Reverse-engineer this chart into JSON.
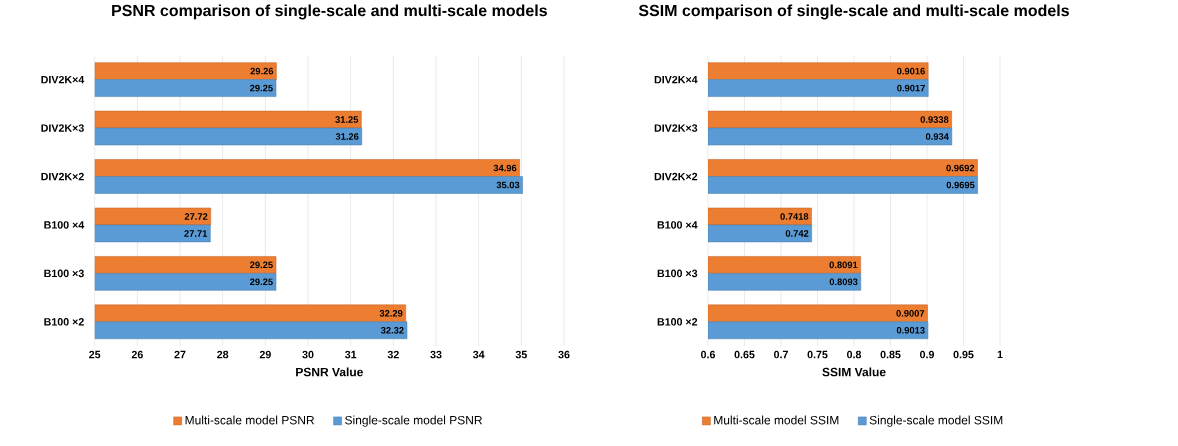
{
  "chart_data": [
    {
      "type": "bar",
      "orientation": "horizontal",
      "title": "PSNR comparison of single-scale and multi-scale models",
      "xlabel": "PSNR  Value",
      "categories": [
        "DIV2K×4",
        "DIV2K×3",
        "DIV2K×2",
        "B100 ×4",
        "B100 ×3",
        "B100 ×2"
      ],
      "series": [
        {
          "name": "Multi-scale model PSNR",
          "color": "#ed7d31",
          "values": [
            29.26,
            31.25,
            34.96,
            27.72,
            29.25,
            32.29
          ]
        },
        {
          "name": "Single-scale model PSNR",
          "color": "#5b9bd5",
          "values": [
            29.25,
            31.26,
            35.03,
            27.71,
            29.25,
            32.32
          ]
        }
      ],
      "xlim": [
        25,
        36
      ],
      "xticks": [
        25,
        26,
        27,
        28,
        29,
        30,
        31,
        32,
        33,
        34,
        35,
        36
      ],
      "grid": "x",
      "legend": "bottom",
      "data_labels": true
    },
    {
      "type": "bar",
      "orientation": "horizontal",
      "title": "SSIM comparison of single-scale and multi-scale models",
      "xlabel": "SSIM Value",
      "categories": [
        "DIV2K×4",
        "DIV2K×3",
        "DIV2K×2",
        "B100 ×4",
        "B100 ×3",
        "B100 ×2"
      ],
      "series": [
        {
          "name": "Multi-scale model SSIM",
          "color": "#ed7d31",
          "values": [
            0.9016,
            0.9338,
            0.9692,
            0.7418,
            0.8091,
            0.9007
          ]
        },
        {
          "name": "Single-scale model SSIM",
          "color": "#5b9bd5",
          "values": [
            0.9017,
            0.934,
            0.9695,
            0.742,
            0.8093,
            0.9013
          ]
        }
      ],
      "xlim": [
        0.6,
        1
      ],
      "xticks": [
        0.6,
        0.65,
        0.7,
        0.75,
        0.8,
        0.85,
        0.9,
        0.95,
        1
      ],
      "grid": "x",
      "legend": "bottom",
      "data_labels": true
    }
  ]
}
